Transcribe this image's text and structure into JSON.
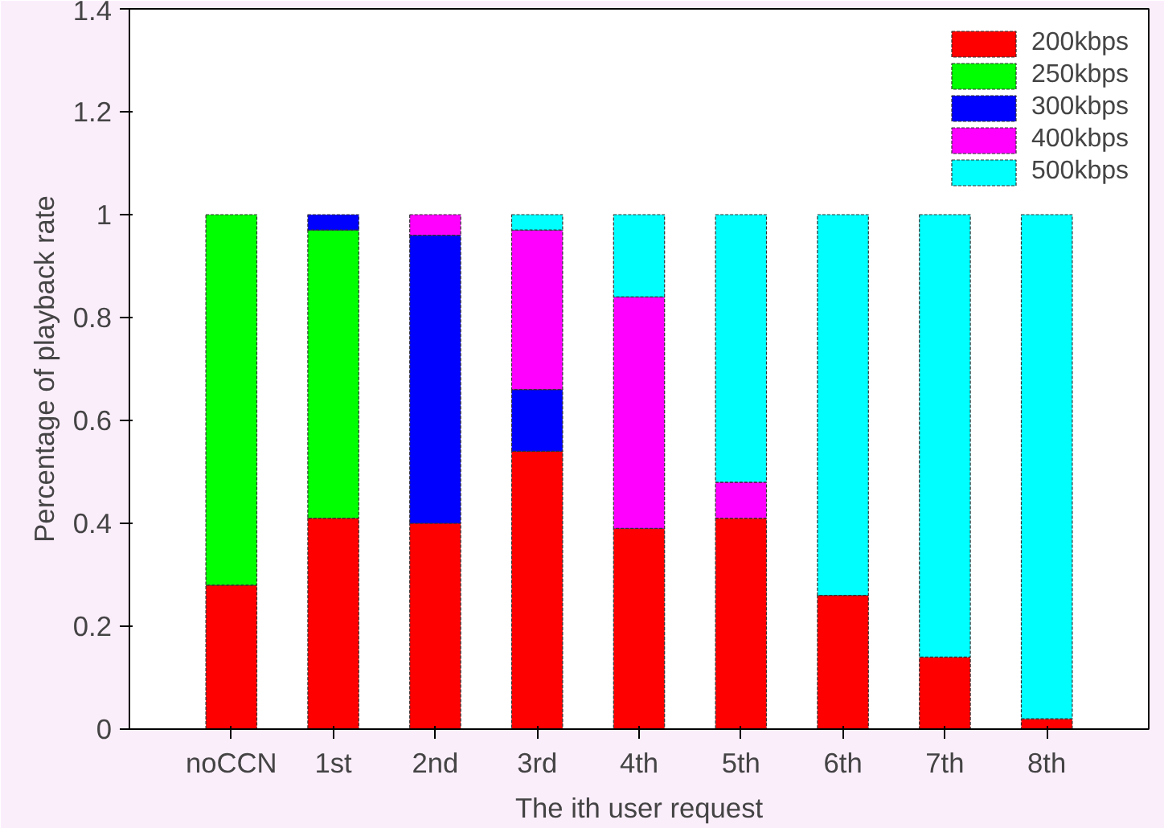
{
  "chart_data": {
    "type": "bar",
    "stacked": true,
    "xlabel": "The ith user request",
    "ylabel": "Percentage of playback rate",
    "categories": [
      "noCCN",
      "1st",
      "2nd",
      "3rd",
      "4th",
      "5th",
      "6th",
      "7th",
      "8th"
    ],
    "series": [
      {
        "name": "200kbps",
        "color": "#ff0000",
        "values": [
          0.28,
          0.41,
          0.4,
          0.54,
          0.39,
          0.41,
          0.26,
          0.14,
          0.02
        ]
      },
      {
        "name": "250kbps",
        "color": "#00ff00",
        "values": [
          0.72,
          0.56,
          null,
          null,
          null,
          null,
          null,
          null,
          null
        ]
      },
      {
        "name": "300kbps",
        "color": "#0000ff",
        "values": [
          null,
          0.03,
          0.56,
          0.12,
          null,
          null,
          null,
          null,
          null
        ]
      },
      {
        "name": "400kbps",
        "color": "#ff00ff",
        "values": [
          null,
          null,
          0.04,
          0.31,
          0.45,
          0.07,
          null,
          null,
          null
        ]
      },
      {
        "name": "500kbps",
        "color": "#00ffff",
        "values": [
          null,
          null,
          null,
          0.03,
          0.16,
          0.52,
          0.74,
          0.86,
          0.98
        ]
      }
    ],
    "ylim": [
      0,
      1.4
    ],
    "yticks": [
      0,
      0.2,
      0.4,
      0.6,
      0.8,
      1,
      1.2,
      1.4
    ],
    "grid": false,
    "legend": "top right"
  }
}
